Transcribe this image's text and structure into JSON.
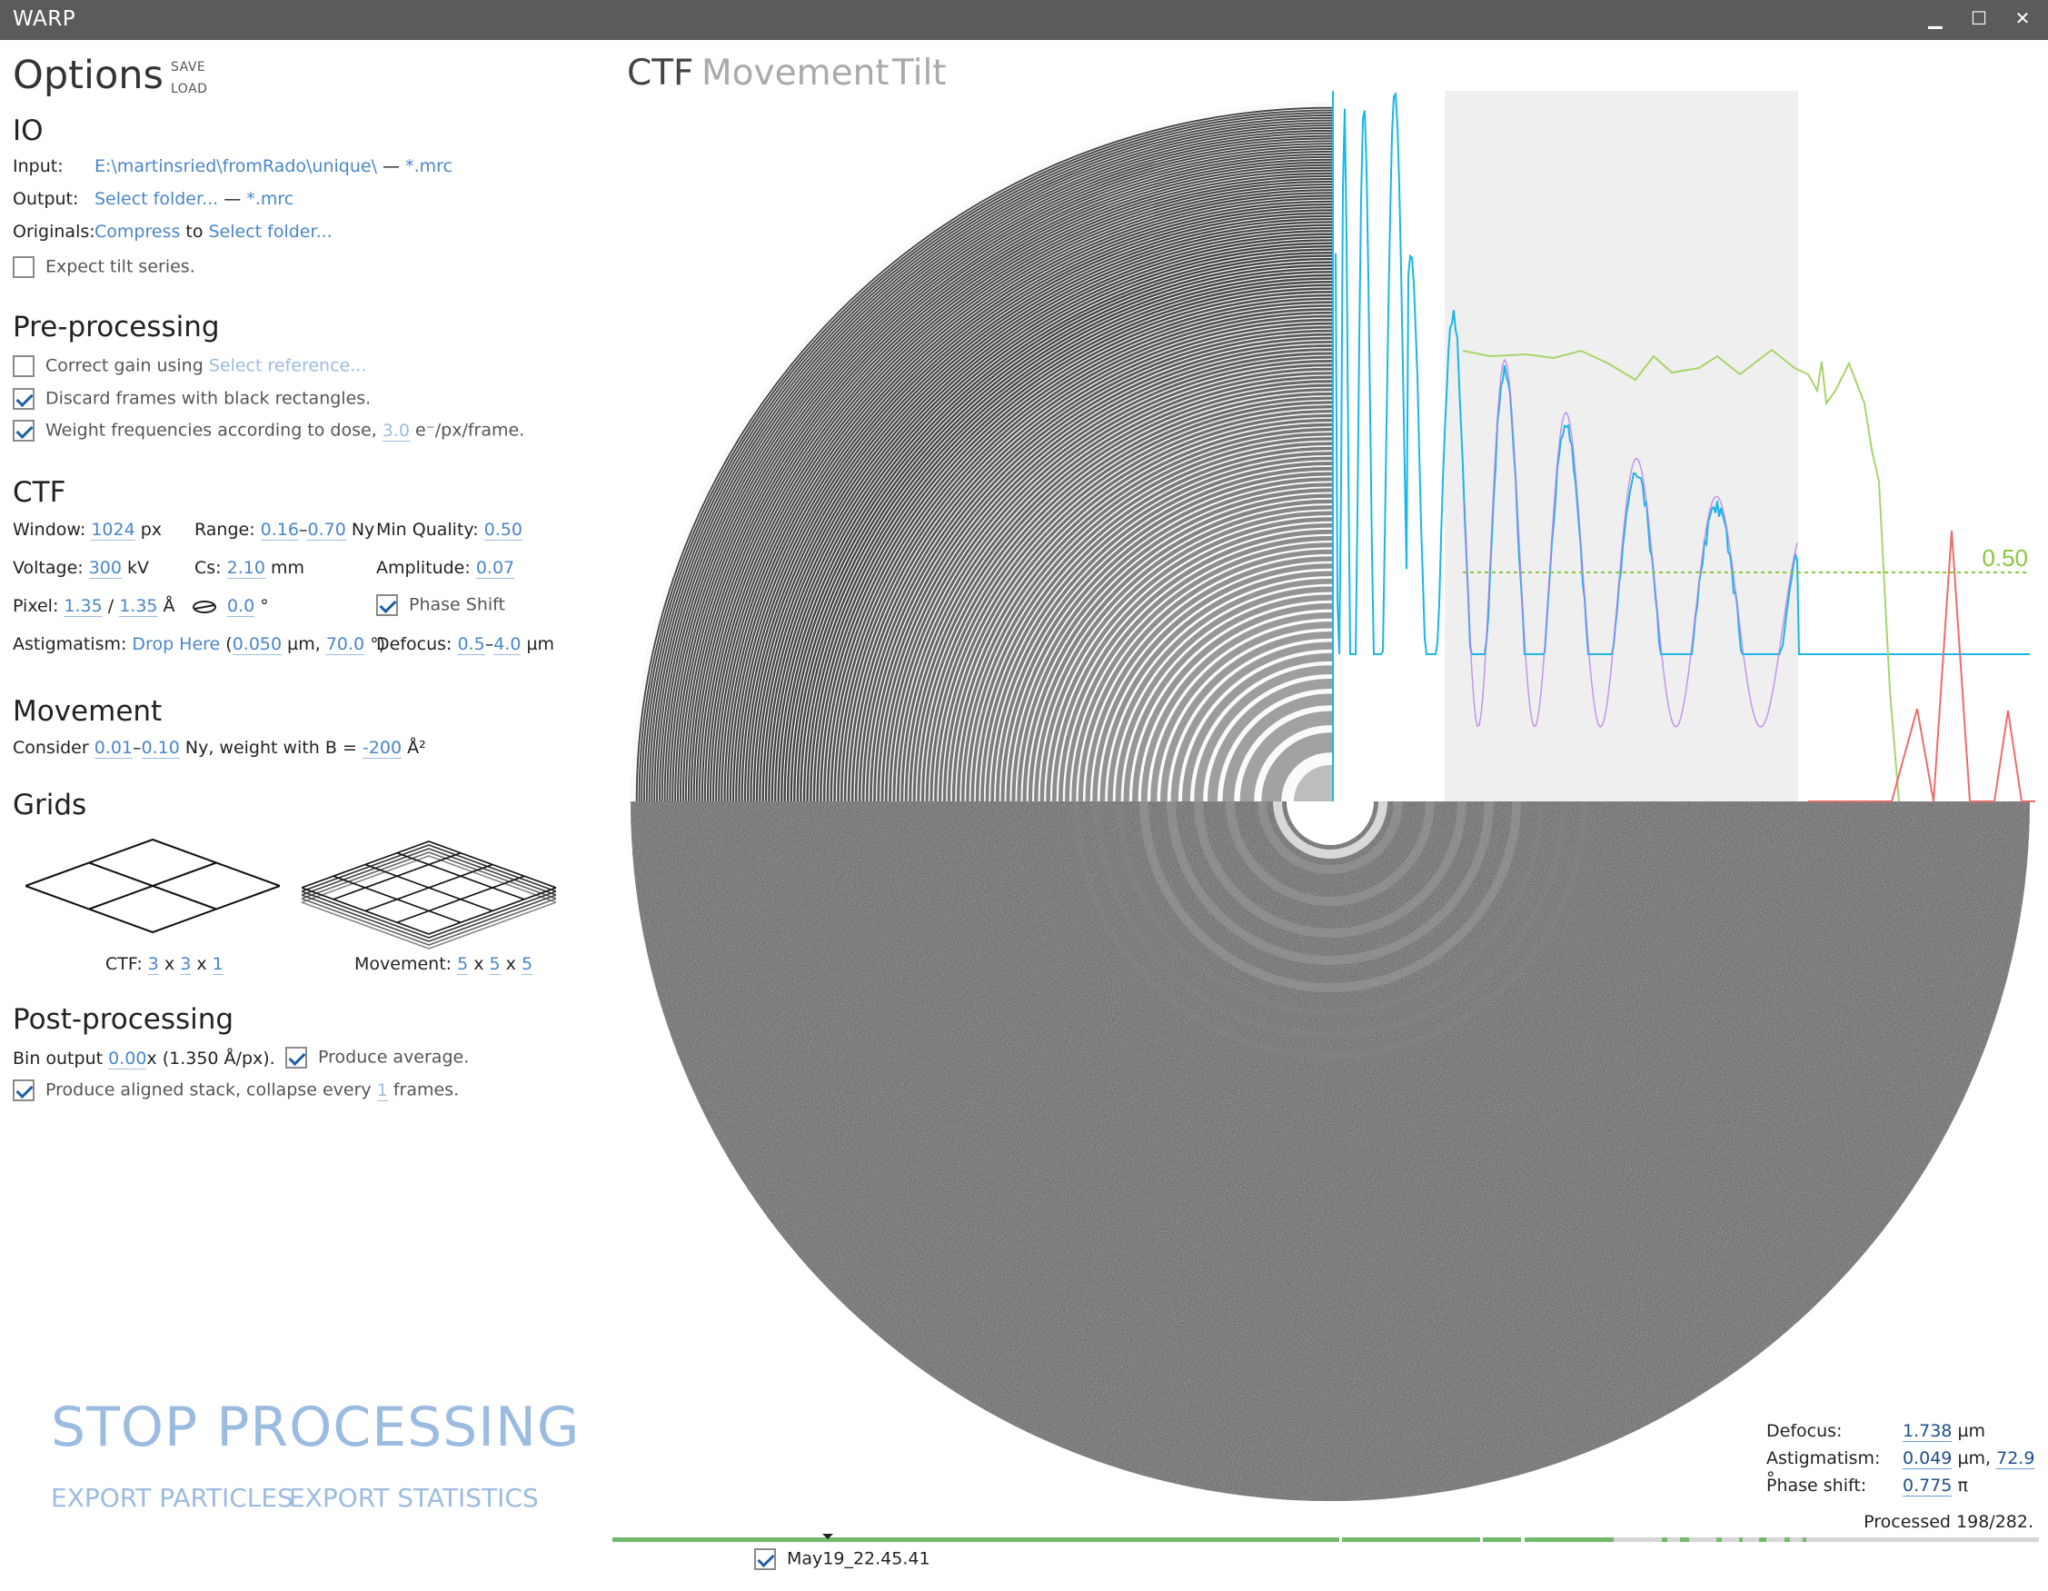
{
  "window": {
    "title": "WARP",
    "min": "▁",
    "max": "☐",
    "close": "✕"
  },
  "options": {
    "title": "Options",
    "save": "SAVE",
    "load": "LOAD"
  },
  "io": {
    "heading": "IO",
    "input_label": "Input:",
    "input_path": "E:\\martinsried\\fromRado\\unique\\",
    "input_sep": " — ",
    "input_ext": "*.mrc",
    "output_label": "Output:",
    "output_path": "Select folder...",
    "output_sep": " — ",
    "output_ext": "*.mrc",
    "originals_label": "Originals:",
    "originals_compress": "Compress",
    "originals_to": " to ",
    "originals_folder": "Select folder...",
    "tilt_label": "Expect tilt series.",
    "tilt_checked": false
  },
  "preprocessing": {
    "heading": "Pre-processing",
    "gain_label": "Correct gain using ",
    "gain_ref": "Select reference...",
    "gain_checked": false,
    "discard_label": "Discard frames with black rectangles.",
    "discard_checked": true,
    "weight_label": "Weight frequencies according to dose, ",
    "weight_value": "3.0",
    "weight_unit": " e⁻/px/frame.",
    "weight_checked": true
  },
  "ctf": {
    "heading": "CTF",
    "window_label": "Window: ",
    "window_value": "1024",
    "window_unit": " px",
    "range_label": "Range: ",
    "range_min": "0.16",
    "range_dash": "–",
    "range_max": "0.70",
    "range_unit": " Ny",
    "minq_label": "Min Quality: ",
    "minq_value": "0.50",
    "voltage_label": "Voltage: ",
    "voltage_value": "300",
    "voltage_unit": " kV",
    "cs_label": "Cs: ",
    "cs_value": "2.10",
    "cs_unit": " mm",
    "amp_label": "Amplitude: ",
    "amp_value": "0.07",
    "pixel_label": "Pixel: ",
    "pixel_x": "1.35",
    "pixel_sep": " / ",
    "pixel_y": "1.35",
    "pixel_unit": " Å",
    "angle_value": "0.0",
    "angle_unit": " °",
    "phase_label": "Phase Shift",
    "phase_checked": true,
    "astig_label": "Astigmatism: ",
    "astig_drop": "Drop Here",
    "astig_open": " (",
    "astig_value": "0.050",
    "astig_mid": " µm, ",
    "astig_angle": "70.0",
    "astig_close": " °)",
    "defocus_label": "Defocus: ",
    "defocus_min": "0.5",
    "defocus_dash": "–",
    "defocus_max": "4.0",
    "defocus_unit": " µm"
  },
  "movement": {
    "heading": "Movement",
    "consider": "Consider ",
    "min": "0.01",
    "dash": "–",
    "max": "0.10",
    "mid": " Ny, weight with B = ",
    "b": "-200",
    "unit": " Å²"
  },
  "grids": {
    "heading": "Grids",
    "ctf_label": "CTF: ",
    "ctf_x": "3",
    "ctf_y": "3",
    "ctf_z": "1",
    "mov_label": "Movement: ",
    "mov_x": "5",
    "mov_y": "5",
    "mov_z": "5",
    "x": " x "
  },
  "postprocessing": {
    "heading": "Post-processing",
    "bin_label": "Bin output ",
    "bin_value": "0.00",
    "bin_unit": "x (1.350 Å/px).",
    "avg_label": "Produce average.",
    "avg_checked": true,
    "stack_label": "Produce aligned stack, collapse every ",
    "stack_value": "1",
    "stack_unit": " frames.",
    "stack_checked": true
  },
  "actions": {
    "stop": "STOP PROCESSING",
    "export_particles": "EXPORT PARTICLES",
    "export_statistics": "EXPORT STATISTICS"
  },
  "tabs": [
    "CTF",
    "Movement",
    "Tilt"
  ],
  "plot": {
    "threshold_label": "0.50",
    "threshold": 0.5
  },
  "stats": {
    "defocus_label": "Defocus:",
    "defocus_value": "1.738",
    "defocus_unit": " µm",
    "astig_label": "Astigmatism:",
    "astig_value": "0.049",
    "astig_mid": " µm, ",
    "astig_angle": "72.9",
    "astig_unit": " °",
    "phase_label": "Phase shift:",
    "phase_value": "0.775",
    "phase_unit": " π",
    "processed": "Processed 198/282."
  },
  "timeline": {
    "current_item": "May19_22.45.41",
    "current_checked": true,
    "processed_fraction": 0.702
  },
  "colors": {
    "accent": "#4a86c8",
    "pale_accent": "#9cbbe0",
    "cyan": "#1ab6e8",
    "green": "#8cc63f",
    "red": "#ef6b6b",
    "progress": "#73b96b"
  }
}
